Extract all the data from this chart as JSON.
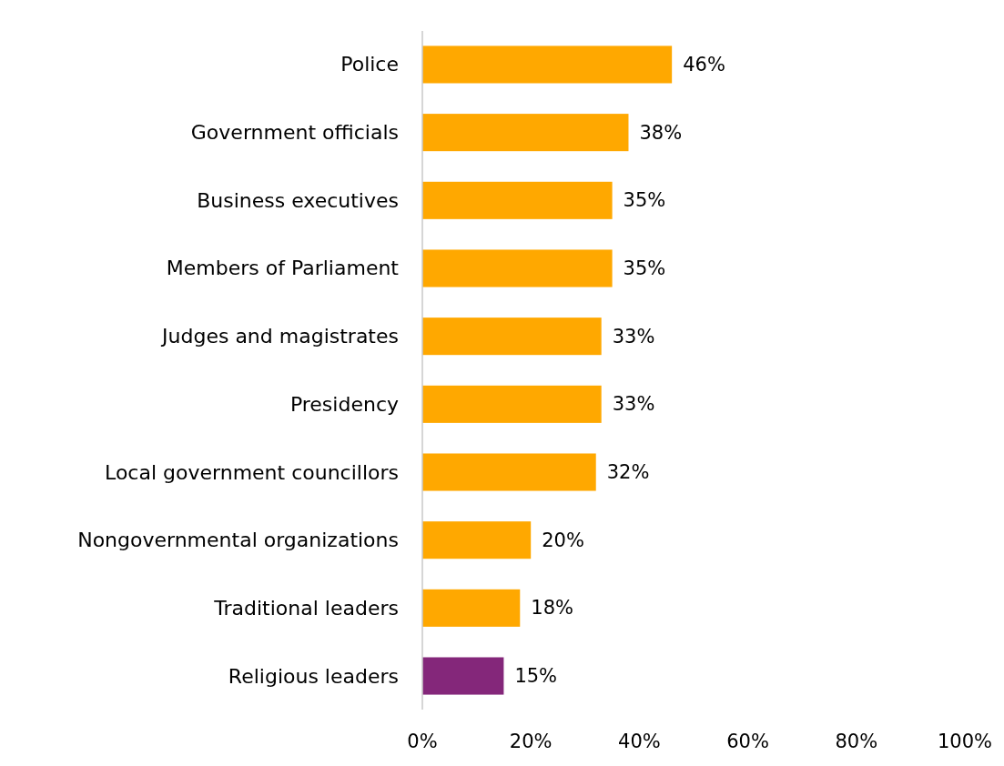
{
  "chart_data": {
    "type": "bar",
    "orientation": "horizontal",
    "categories": [
      "Police",
      "Government officials",
      "Business executives",
      "Members of Parliament",
      "Judges and magistrates",
      "Presidency",
      "Local government councillors",
      "Nongovernmental organizations",
      "Traditional leaders",
      "Religious leaders"
    ],
    "values": [
      46,
      38,
      35,
      35,
      33,
      33,
      32,
      20,
      18,
      15
    ],
    "colors": [
      "#ffa800",
      "#ffa800",
      "#ffa800",
      "#ffa800",
      "#ffa800",
      "#ffa800",
      "#ffa800",
      "#ffa800",
      "#ffa800",
      "#84277a"
    ],
    "value_labels": [
      "46%",
      "38%",
      "35%",
      "35%",
      "33%",
      "33%",
      "32%",
      "20%",
      "18%",
      "15%"
    ],
    "xlim": [
      0,
      100
    ],
    "xticks": [
      {
        "value": 0,
        "label": "0%"
      },
      {
        "value": 20,
        "label": "20%"
      },
      {
        "value": 40,
        "label": "40%"
      },
      {
        "value": 60,
        "label": "60%"
      },
      {
        "value": 80,
        "label": "80%"
      },
      {
        "value": 100,
        "label": "100%"
      }
    ],
    "grid": false
  }
}
